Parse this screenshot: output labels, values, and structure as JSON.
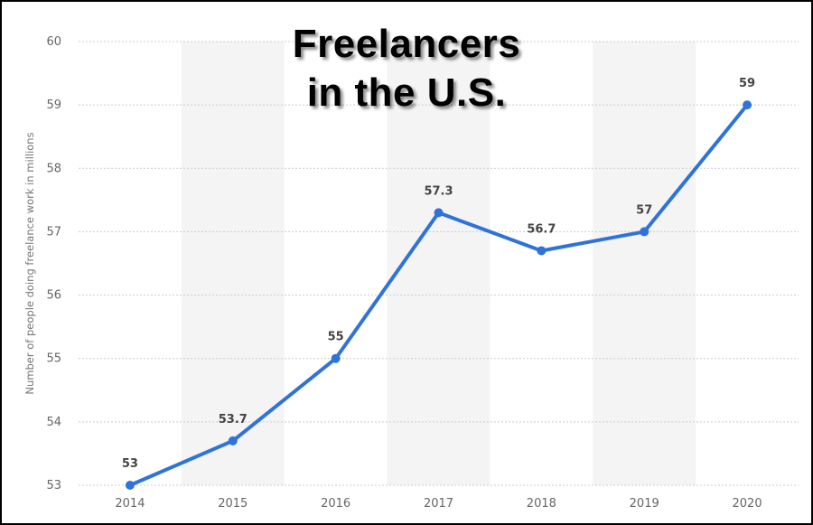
{
  "title_lines": [
    "Freelancers",
    "in the U.S."
  ],
  "chart_data": {
    "type": "line",
    "x": [
      "2014",
      "2015",
      "2016",
      "2017",
      "2018",
      "2019",
      "2020"
    ],
    "series": [
      {
        "values": [
          53,
          53.7,
          55,
          57.3,
          56.7,
          57,
          59
        ]
      }
    ],
    "data_labels": [
      "53",
      "53.7",
      "55",
      "57.3",
      "56.7",
      "57",
      "59"
    ],
    "ylabel": "Number of people doing freelance work in millions",
    "xlabel": "",
    "ylim": [
      53,
      60
    ],
    "yticks": [
      "53",
      "54",
      "55",
      "56",
      "57",
      "58",
      "59",
      "60"
    ],
    "grid": true,
    "alternating_column_bands": true
  },
  "colors": {
    "line": "#2f73d8",
    "band": "#f4f4f4",
    "grid": "#cccccc"
  }
}
